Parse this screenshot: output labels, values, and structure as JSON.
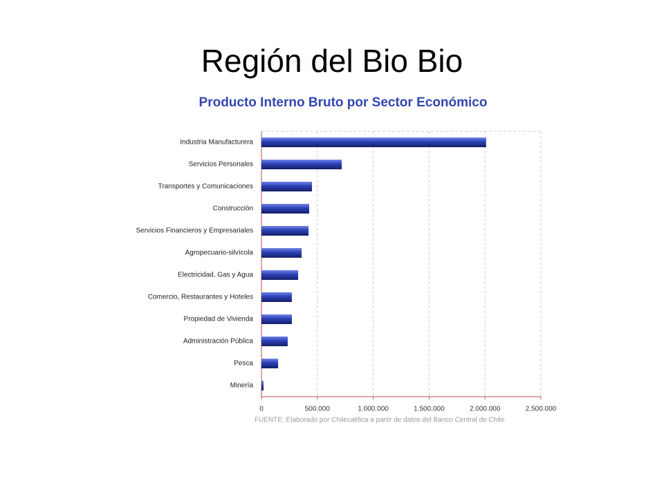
{
  "slide": {
    "title": "Región del Bio Bio"
  },
  "chart_data": {
    "type": "hbar",
    "title": "Producto Interno Bruto por Sector Económico",
    "source": "FUENTE: Elaborado por Chilecalifica a partir de datos del Banco Central de Chile.",
    "categories": [
      "Industria Manufacturera",
      "Servicios Personales",
      "Transportes y Comunicaciones",
      "Construcción",
      "Servicios Financieros y Empresariales",
      "Agropecuario-silvícola",
      "Electricidad, Gas y Agua",
      "Comercio, Restaurantes y Hoteles",
      "Propiedad de Vivienda",
      "Administración Pública",
      "Pesca",
      "Minería"
    ],
    "values": [
      2010000,
      718000,
      452000,
      427000,
      421000,
      359000,
      328000,
      272000,
      272000,
      235000,
      149000,
      19000
    ],
    "color": "#2b3fb5",
    "xlim": [
      0,
      2500000
    ],
    "xticks": [
      0,
      {
        "value": 500000,
        "label": "500.000"
      },
      {
        "value": 1000000,
        "label": "1.000.000"
      },
      {
        "value": 1500000,
        "label": "1.500.000"
      },
      {
        "value": 2000000,
        "label": "2.000.000"
      },
      {
        "value": 2500000,
        "label": "2.500.000"
      }
    ],
    "grid": true
  }
}
